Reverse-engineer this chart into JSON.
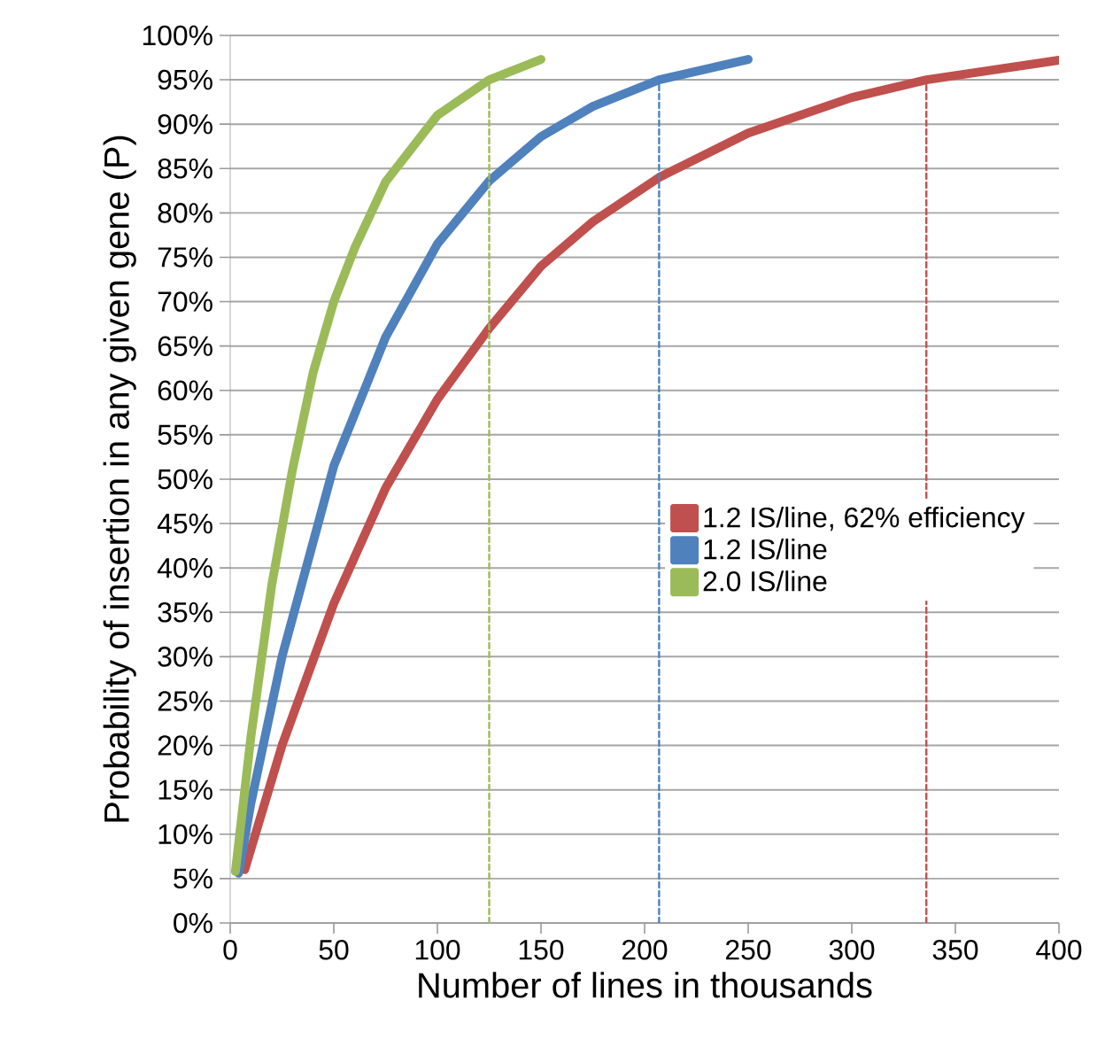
{
  "chart_data": {
    "type": "line",
    "xlabel": "Number of lines in thousands",
    "ylabel": "Probability of insertion in any given gene (P)",
    "series": [
      {
        "name": "1.2 IS/line, 62% efficiency",
        "color": "#c0504d",
        "x": [
          7,
          25,
          50,
          75,
          100,
          125,
          150,
          175,
          207,
          250,
          300,
          336,
          400
        ],
        "values": [
          6,
          20,
          36,
          49,
          59,
          67,
          74,
          79,
          84,
          89,
          93,
          95,
          97.2
        ]
      },
      {
        "name": "1.2 IS/line",
        "color": "#4f81bd",
        "x": [
          4,
          10,
          25,
          50,
          75,
          100,
          125,
          150,
          175,
          207,
          250
        ],
        "values": [
          5.6,
          13.5,
          30,
          51.5,
          66,
          76.5,
          83.6,
          88.6,
          92,
          95,
          97.3
        ]
      },
      {
        "name": "2.0 IS/line",
        "color": "#9bbb59",
        "x": [
          2.5,
          10,
          20,
          30,
          40,
          50,
          60,
          75,
          100,
          125,
          150
        ],
        "values": [
          5.8,
          21,
          38,
          51,
          62,
          70,
          76,
          83.5,
          91,
          95,
          97.3
        ]
      },
      {
        "color": "#9bbb59",
        "line_style": "dashed",
        "x": [
          125,
          125
        ],
        "values": [
          0,
          95
        ]
      },
      {
        "color": "#4f81bd",
        "line_style": "dashed",
        "x": [
          207,
          207
        ],
        "values": [
          0,
          95
        ]
      },
      {
        "color": "#c0504d",
        "line_style": "dashed",
        "x": [
          336,
          336
        ],
        "values": [
          0,
          95
        ]
      }
    ],
    "xlim": [
      0,
      400
    ],
    "xticks": [
      0,
      50,
      100,
      150,
      200,
      250,
      300,
      350,
      400
    ],
    "ylim": [
      0,
      100
    ],
    "yticks": [
      {
        "value": 0,
        "label": "0%"
      },
      {
        "value": 5,
        "label": "5%"
      },
      {
        "value": 10,
        "label": "10%"
      },
      {
        "value": 15,
        "label": "15%"
      },
      {
        "value": 20,
        "label": "20%"
      },
      {
        "value": 25,
        "label": "25%"
      },
      {
        "value": 30,
        "label": "30%"
      },
      {
        "value": 35,
        "label": "35%"
      },
      {
        "value": 40,
        "label": "40%"
      },
      {
        "value": 45,
        "label": "45%"
      },
      {
        "value": 50,
        "label": "50%"
      },
      {
        "value": 55,
        "label": "55%"
      },
      {
        "value": 60,
        "label": "60%"
      },
      {
        "value": 65,
        "label": "65%"
      },
      {
        "value": 70,
        "label": "70%"
      },
      {
        "value": 75,
        "label": "75%"
      },
      {
        "value": 80,
        "label": "80%"
      },
      {
        "value": 85,
        "label": "85%"
      },
      {
        "value": 90,
        "label": "90%"
      },
      {
        "value": 95,
        "label": "95%"
      },
      {
        "value": 100,
        "label": "100%"
      }
    ],
    "grid": "y",
    "legend": "center right",
    "marker": "none",
    "line_style": "solid"
  }
}
